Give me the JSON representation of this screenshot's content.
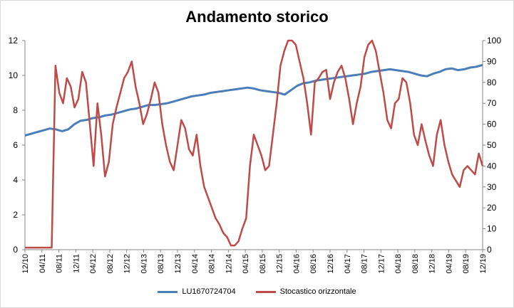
{
  "chart_data": {
    "type": "line",
    "title": "Andamento storico",
    "x_ticks": [
      "12/10",
      "04/11",
      "08/11",
      "12/11",
      "04/12",
      "08/12",
      "12/12",
      "04/13",
      "08/13",
      "12/13",
      "04/14",
      "08/14",
      "12/14",
      "04/15",
      "08/15",
      "12/15",
      "04/16",
      "08/16",
      "12/16",
      "04/17",
      "08/17",
      "12/17",
      "04/18",
      "08/18",
      "12/18",
      "04/19",
      "08/19",
      "12/19"
    ],
    "y_left": {
      "min": 0,
      "max": 12,
      "ticks": [
        0,
        2,
        4,
        6,
        8,
        10,
        12
      ]
    },
    "y_right": {
      "min": 0,
      "max": 100,
      "ticks": [
        0,
        10,
        20,
        30,
        40,
        50,
        60,
        70,
        80,
        90,
        100
      ]
    },
    "grid": false,
    "legend_position": "bottom",
    "series": [
      {
        "name": "LU1670724704",
        "axis": "left",
        "color": "#4a7ebb",
        "values": [
          6.55,
          6.65,
          6.75,
          6.85,
          6.95,
          6.9,
          6.8,
          6.9,
          7.2,
          7.4,
          7.45,
          7.55,
          7.6,
          7.7,
          7.75,
          7.85,
          7.95,
          8.05,
          8.1,
          8.2,
          8.3,
          8.3,
          8.35,
          8.4,
          8.5,
          8.6,
          8.7,
          8.8,
          8.85,
          8.9,
          9.0,
          9.05,
          9.1,
          9.15,
          9.2,
          9.25,
          9.3,
          9.25,
          9.15,
          9.1,
          9.05,
          9.0,
          8.9,
          9.15,
          9.4,
          9.55,
          9.6,
          9.7,
          9.75,
          9.8,
          9.85,
          9.9,
          9.95,
          10.0,
          10.05,
          10.1,
          10.2,
          10.25,
          10.3,
          10.35,
          10.3,
          10.25,
          10.2,
          10.1,
          10.0,
          9.95,
          10.1,
          10.2,
          10.35,
          10.4,
          10.3,
          10.35,
          10.45,
          10.5,
          10.6
        ]
      },
      {
        "name": "Stocastico orizzontale",
        "axis": "right",
        "color": "#be4b48",
        "values": [
          1,
          1,
          1,
          1,
          1,
          1,
          1,
          1,
          88,
          75,
          70,
          82,
          78,
          68,
          72,
          85,
          80,
          60,
          40,
          70,
          55,
          35,
          42,
          60,
          68,
          75,
          82,
          85,
          90,
          78,
          70,
          60,
          65,
          72,
          80,
          75,
          60,
          50,
          42,
          38,
          50,
          62,
          58,
          48,
          45,
          55,
          40,
          30,
          25,
          20,
          15,
          12,
          8,
          6,
          2,
          2,
          4,
          10,
          15,
          40,
          55,
          50,
          45,
          38,
          40,
          55,
          70,
          88,
          95,
          100,
          100,
          98,
          90,
          82,
          70,
          55,
          80,
          82,
          85,
          86,
          72,
          80,
          85,
          88,
          82,
          72,
          60,
          70,
          78,
          92,
          98,
          100,
          95,
          85,
          75,
          62,
          58,
          70,
          72,
          82,
          80,
          70,
          55,
          50,
          60,
          52,
          45,
          40,
          55,
          62,
          50,
          42,
          36,
          33,
          30,
          38,
          40,
          38,
          36,
          46,
          40
        ]
      }
    ]
  }
}
